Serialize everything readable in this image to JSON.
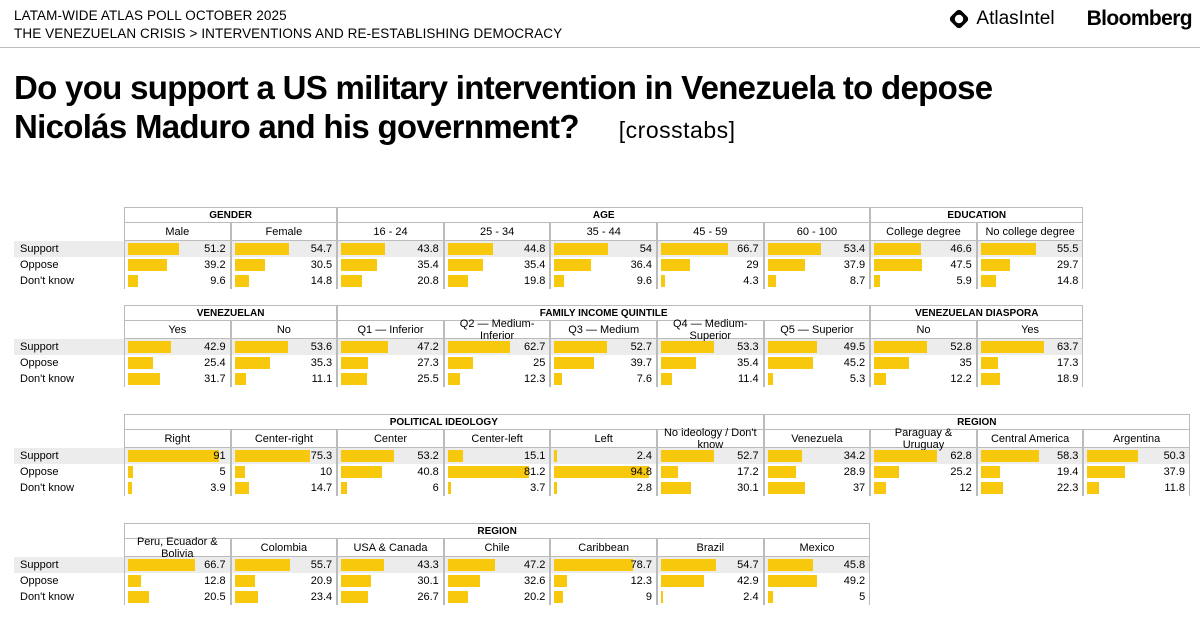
{
  "header": {
    "line1": "LATAM-WIDE ATLAS POLL OCTOBER 2025",
    "line2": "THE VENEZUELAN CRISIS > INTERVENTIONS AND RE-ESTABLISHING DEMOCRACY",
    "logo_atlas": "AtlasIntel",
    "logo_bloomberg": "Bloomberg"
  },
  "title": {
    "line1": "Do you support a US military intervention in Venezuela to depose",
    "line2": "Nicolás Maduro and his government?",
    "tag": "[crosstabs]"
  },
  "colors": {
    "bar": "#f8c80d",
    "support_row": "#ececec",
    "border": "#bbbbbb"
  },
  "chart_data": {
    "type": "table",
    "rows": [
      "Support",
      "Oppose",
      "Don't know"
    ],
    "blocks": [
      {
        "groups": [
          {
            "name": "GENDER",
            "columns": [
              {
                "label": "Male",
                "values": [
                  51.2,
                  39.2,
                  9.6
                ]
              },
              {
                "label": "Female",
                "values": [
                  54.7,
                  30.5,
                  14.8
                ]
              }
            ]
          },
          {
            "name": "AGE",
            "columns": [
              {
                "label": "16 - 24",
                "values": [
                  43.8,
                  35.4,
                  20.8
                ]
              },
              {
                "label": "25 - 34",
                "values": [
                  44.8,
                  35.4,
                  19.8
                ]
              },
              {
                "label": "35 - 44",
                "values": [
                  54,
                  36.4,
                  9.6
                ]
              },
              {
                "label": "45 - 59",
                "values": [
                  66.7,
                  29,
                  4.3
                ]
              },
              {
                "label": "60 - 100",
                "values": [
                  53.4,
                  37.9,
                  8.7
                ]
              }
            ]
          },
          {
            "name": "EDUCATION",
            "columns": [
              {
                "label": "College degree",
                "values": [
                  46.6,
                  47.5,
                  5.9
                ]
              },
              {
                "label": "No college degree",
                "values": [
                  55.5,
                  29.7,
                  14.8
                ]
              }
            ]
          }
        ]
      },
      {
        "groups": [
          {
            "name": "VENEZUELAN",
            "columns": [
              {
                "label": "Yes",
                "values": [
                  42.9,
                  25.4,
                  31.7
                ]
              },
              {
                "label": "No",
                "values": [
                  53.6,
                  35.3,
                  11.1
                ]
              }
            ]
          },
          {
            "name": "FAMILY INCOME QUINTILE",
            "columns": [
              {
                "label": "Q1 — Inferior",
                "values": [
                  47.2,
                  27.3,
                  25.5
                ]
              },
              {
                "label": "Q2 — Medium-Inferior",
                "values": [
                  62.7,
                  25,
                  12.3
                ]
              },
              {
                "label": "Q3 — Medium",
                "values": [
                  52.7,
                  39.7,
                  7.6
                ]
              },
              {
                "label": "Q4 — Medium-Superior",
                "values": [
                  53.3,
                  35.4,
                  11.4
                ]
              },
              {
                "label": "Q5 — Superior",
                "values": [
                  49.5,
                  45.2,
                  5.3
                ]
              }
            ]
          },
          {
            "name": "VENEZUELAN DIASPORA",
            "columns": [
              {
                "label": "No",
                "values": [
                  52.8,
                  35,
                  12.2
                ]
              },
              {
                "label": "Yes",
                "values": [
                  63.7,
                  17.3,
                  18.9
                ]
              }
            ]
          }
        ]
      },
      {
        "groups": [
          {
            "name": "POLITICAL IDEOLOGY",
            "columns": [
              {
                "label": "Right",
                "values": [
                  91,
                  5,
                  3.9
                ]
              },
              {
                "label": "Center-right",
                "values": [
                  75.3,
                  10,
                  14.7
                ]
              },
              {
                "label": "Center",
                "values": [
                  53.2,
                  40.8,
                  6
                ]
              },
              {
                "label": "Center-left",
                "values": [
                  15.1,
                  81.2,
                  3.7
                ]
              },
              {
                "label": "Left",
                "values": [
                  2.4,
                  94.8,
                  2.8
                ]
              },
              {
                "label": "No ideology / Don't know",
                "values": [
                  52.7,
                  17.2,
                  30.1
                ]
              }
            ]
          },
          {
            "name": "REGION",
            "columns": [
              {
                "label": "Venezuela",
                "values": [
                  34.2,
                  28.9,
                  37
                ]
              },
              {
                "label": "Paraguay & Uruguay",
                "values": [
                  62.8,
                  25.2,
                  12
                ]
              },
              {
                "label": "Central America",
                "values": [
                  58.3,
                  19.4,
                  22.3
                ]
              },
              {
                "label": "Argentina",
                "values": [
                  50.3,
                  37.9,
                  11.8
                ]
              }
            ]
          }
        ]
      },
      {
        "groups": [
          {
            "name": "REGION",
            "columns": [
              {
                "label": "Peru, Ecuador & Bolivia",
                "values": [
                  66.7,
                  12.8,
                  20.5
                ]
              },
              {
                "label": "Colombia",
                "values": [
                  55.7,
                  20.9,
                  23.4
                ]
              },
              {
                "label": "USA & Canada",
                "values": [
                  43.3,
                  30.1,
                  26.7
                ]
              },
              {
                "label": "Chile",
                "values": [
                  47.2,
                  32.6,
                  20.2
                ]
              },
              {
                "label": "Caribbean",
                "values": [
                  78.7,
                  12.3,
                  9
                ]
              },
              {
                "label": "Brazil",
                "values": [
                  54.7,
                  42.9,
                  2.4
                ]
              },
              {
                "label": "Mexico",
                "values": [
                  45.8,
                  49.2,
                  5
                ]
              }
            ]
          }
        ]
      }
    ]
  }
}
